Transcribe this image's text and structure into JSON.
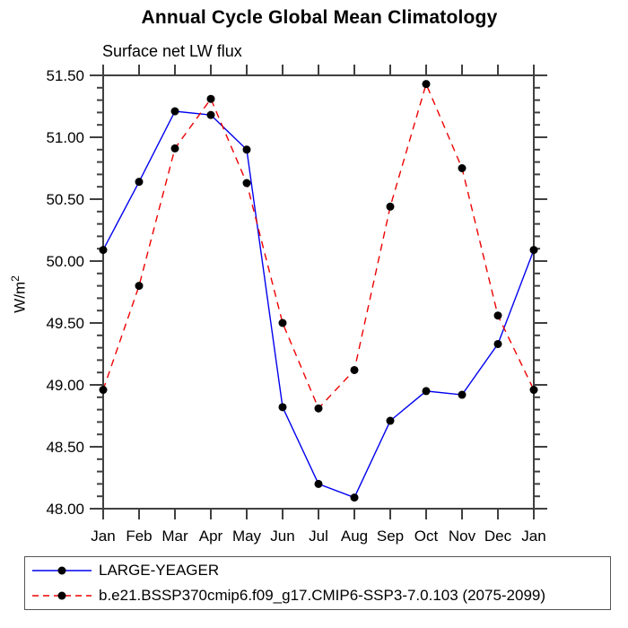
{
  "chart_data": {
    "type": "line",
    "title": "Annual Cycle Global Mean Climatology",
    "subtitle": "Surface net LW flux",
    "ylabel": "W/m²",
    "ylabel_parts": [
      "W/m",
      "2"
    ],
    "x_categories": [
      "Jan",
      "Feb",
      "Mar",
      "Apr",
      "May",
      "Jun",
      "Jul",
      "Aug",
      "Sep",
      "Oct",
      "Nov",
      "Dec",
      "Jan"
    ],
    "ylim": [
      48.0,
      51.5
    ],
    "y_major_tick_labels": [
      "51.50",
      "51.00",
      "50.50",
      "50.00",
      "49.50",
      "49.00",
      "48.50",
      "48.00"
    ],
    "y_major_step": 0.5,
    "y_minor_step": 0.1,
    "grid": false,
    "legend_position": "bottom-left-box",
    "series": [
      {
        "name": "LARGE-YEAGER",
        "color": "#0000ee",
        "style": "solid",
        "marker": "black-dot",
        "values": [
          50.09,
          50.64,
          51.21,
          51.18,
          50.9,
          48.82,
          48.2,
          48.09,
          48.71,
          48.95,
          48.92,
          49.33,
          50.09
        ]
      },
      {
        "name": "b.e21.BSSP370cmip6.f09_g17.CMIP6-SSP3-7.0.103 (2075-2099)",
        "color": "#ee0000",
        "style": "dashed",
        "marker": "black-dot",
        "values": [
          48.96,
          49.8,
          50.91,
          51.31,
          50.63,
          49.5,
          48.81,
          49.12,
          50.44,
          51.43,
          50.75,
          49.56,
          48.96
        ]
      }
    ],
    "colors": {
      "axis": "#404040",
      "marker": "#000000",
      "text": "#000000"
    }
  }
}
